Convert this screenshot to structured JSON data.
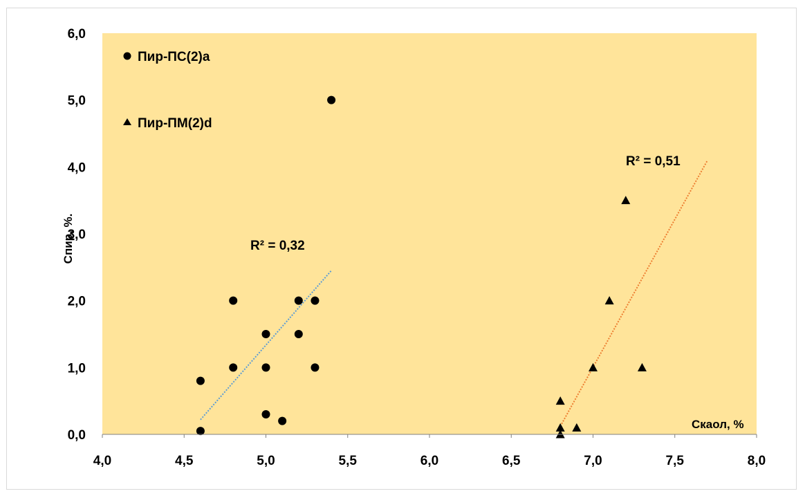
{
  "chart_data": {
    "type": "scatter",
    "xlabel": "Скаол, %",
    "ylabel": "Спир, %.",
    "xlim": [
      4.0,
      8.0
    ],
    "ylim": [
      0.0,
      6.0
    ],
    "x_ticks": [
      "4,0",
      "4,5",
      "5,0",
      "5,5",
      "6,0",
      "6,5",
      "7,0",
      "7,5",
      "8,0"
    ],
    "y_ticks": [
      "0,0",
      "1,0",
      "2,0",
      "3,0",
      "4,0",
      "5,0",
      "6,0"
    ],
    "grid": false,
    "plot_background": "#FFE49A",
    "legend_position": "top-left",
    "series": [
      {
        "name": "Пир-ПС(2)а",
        "marker": "circle",
        "color": "#000000",
        "points": [
          [
            4.6,
            0.05
          ],
          [
            4.6,
            0.8
          ],
          [
            4.8,
            1.0
          ],
          [
            4.8,
            2.0
          ],
          [
            5.0,
            1.5
          ],
          [
            5.0,
            1.0
          ],
          [
            5.0,
            0.3
          ],
          [
            5.1,
            0.2
          ],
          [
            5.2,
            2.0
          ],
          [
            5.2,
            1.5
          ],
          [
            5.3,
            2.0
          ],
          [
            5.3,
            1.0
          ],
          [
            5.4,
            5.0
          ]
        ],
        "trendline": {
          "x": [
            4.6,
            5.4
          ],
          "y": [
            0.22,
            2.45
          ],
          "color": "#5B9BD5",
          "r2_label": "R² = 0,32"
        }
      },
      {
        "name": "Пир-ПМ(2)d",
        "marker": "triangle",
        "color": "#000000",
        "points": [
          [
            6.8,
            0.0
          ],
          [
            6.8,
            0.1
          ],
          [
            6.8,
            0.5
          ],
          [
            6.9,
            0.1
          ],
          [
            7.0,
            1.0
          ],
          [
            7.1,
            2.0
          ],
          [
            7.2,
            3.5
          ],
          [
            7.3,
            1.0
          ]
        ],
        "trendline": {
          "x": [
            6.8,
            7.7
          ],
          "y": [
            0.12,
            4.1
          ],
          "color": "#ED7D31",
          "r2_label": "R² = 0,51"
        }
      }
    ]
  }
}
